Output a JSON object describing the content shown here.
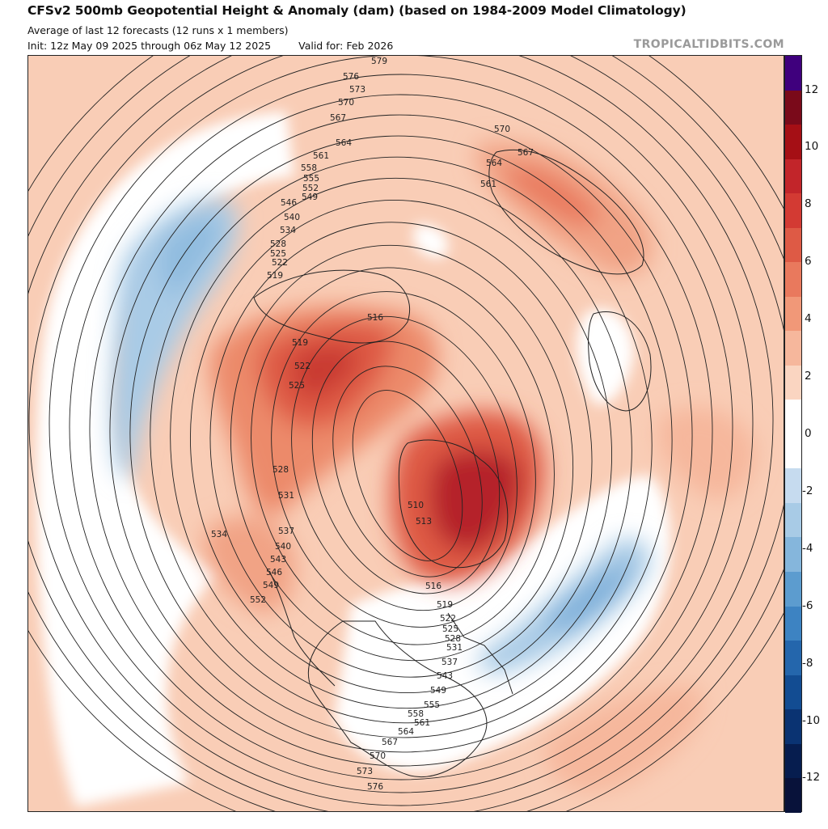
{
  "header": {
    "title": "CFSv2 500mb Geopotential Height & Anomaly (dam) (based on 1984-2009 Model Climatology)",
    "subtitle": "Average of last 12 forecasts (12 runs x 1 members)",
    "init": "Init: 12z May 09 2025 through 06z May 12 2025",
    "valid": "Valid for: Feb 2026",
    "brand": "TROPICALTIDBITS.COM"
  },
  "colorbar": {
    "ticks": [
      "12",
      "10",
      "8",
      "6",
      "4",
      "2",
      "0",
      "-2",
      "-4",
      "-6",
      "-8",
      "-10",
      "-12"
    ],
    "colors": [
      "#3f007d",
      "#7a0a1a",
      "#a50f15",
      "#c2252a",
      "#d33a33",
      "#de5a45",
      "#e9795d",
      "#f19878",
      "#f6b79c",
      "#fad5c1",
      "#ffffff",
      "#ffffff",
      "#c6dbef",
      "#a8cbe6",
      "#85b6dc",
      "#5c9ccf",
      "#3d83c2",
      "#2466ac",
      "#124c92",
      "#0a3372",
      "#061d4f",
      "#08123a"
    ]
  },
  "contours": {
    "labels": [
      "579",
      "576",
      "573",
      "570",
      "567",
      "564",
      "561",
      "558",
      "555",
      "552",
      "549",
      "546",
      "540",
      "534",
      "528",
      "525",
      "522",
      "519",
      "516",
      "513",
      "510",
      "531",
      "537",
      "543"
    ]
  },
  "anomaly_features": [
    {
      "name": "positive anomaly over Siberia / Kamchatka sector",
      "value": 6
    },
    {
      "name": "positive anomaly over Greenland",
      "value": 9
    },
    {
      "name": "positive anomaly over Alaska / Pacific",
      "value": 4
    },
    {
      "name": "negative anomaly over eastern Canada / N Atlantic",
      "value": -4
    },
    {
      "name": "negative anomaly over western Europe sector",
      "value": -3
    }
  ]
}
